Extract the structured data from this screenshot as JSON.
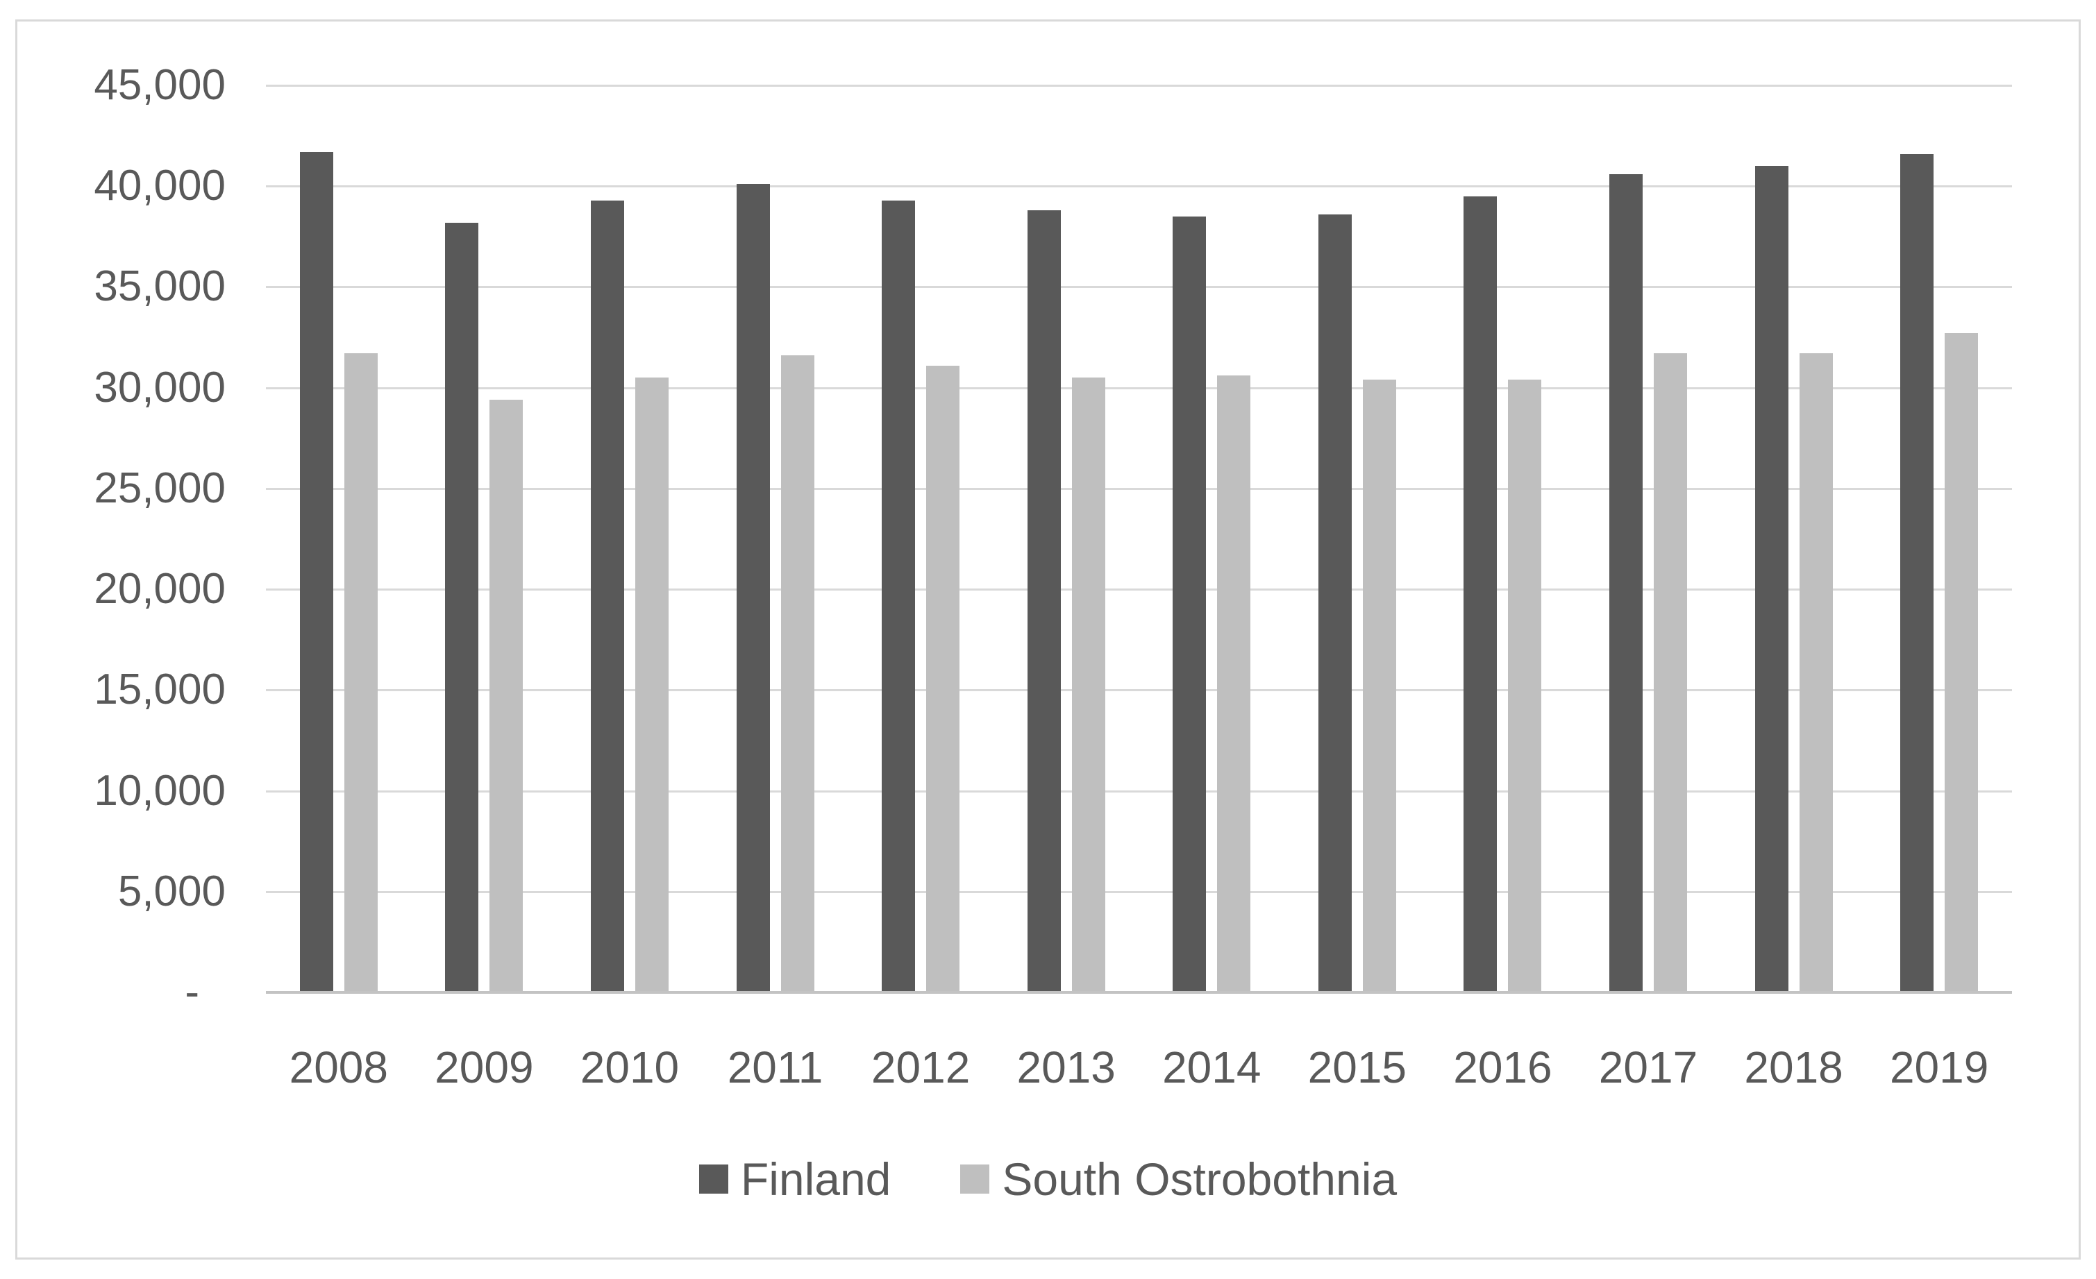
{
  "chart_data": {
    "type": "bar",
    "title": "",
    "categories": [
      "2008",
      "2009",
      "2010",
      "2011",
      "2012",
      "2013",
      "2014",
      "2015",
      "2016",
      "2017",
      "2018",
      "2019"
    ],
    "series": [
      {
        "name": "Finland",
        "color": "#595959",
        "values": [
          41700,
          38200,
          39300,
          40100,
          39300,
          38800,
          38500,
          38600,
          39500,
          40600,
          41000,
          41600
        ]
      },
      {
        "name": "South Ostrobothnia",
        "color": "#bfbfbf",
        "values": [
          31700,
          29400,
          30500,
          31600,
          31100,
          30500,
          30600,
          30400,
          30400,
          31700,
          31700,
          32700
        ]
      }
    ],
    "xlabel": "",
    "ylabel": "",
    "ylim": [
      0,
      45000
    ],
    "ytick_step": 5000,
    "ytick_labels_top_down": [
      "45,000",
      "40,000",
      "35,000",
      "30,000",
      "25,000",
      "20,000",
      "15,000",
      "10,000",
      "5,000",
      "-"
    ],
    "grid": true,
    "legend_position": "bottom"
  },
  "styles": {
    "background_color": "#ffffff",
    "frame_border_color": "#d9d9d9",
    "gridline_color": "#d9d9d9",
    "axis_line_color": "#c3c3c3",
    "tick_label_color": "#595959"
  }
}
